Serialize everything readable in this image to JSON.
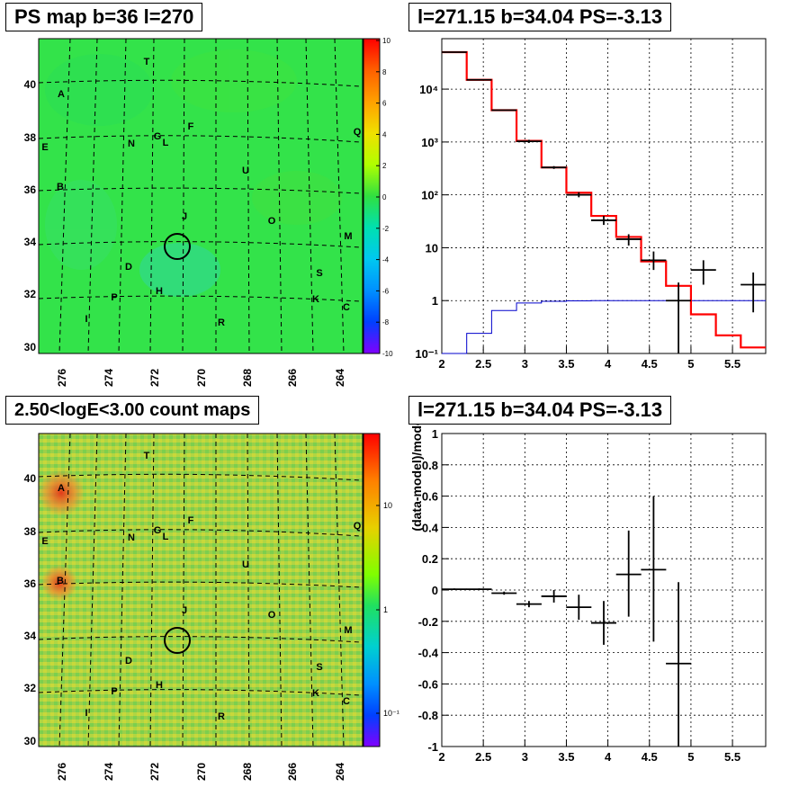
{
  "titles": {
    "ps_map": "PS map b=36 l=270",
    "spectrum": "l=271.15 b=34.04 PS=-3.13",
    "count_map": "2.50<logE<3.00 count maps",
    "residual": "l=271.15 b=34.04 PS=-3.13"
  },
  "maps": {
    "y_ticks": [
      "30",
      "32",
      "34",
      "36",
      "38",
      "40"
    ],
    "x_ticks": [
      "276",
      "274",
      "272",
      "270",
      "268",
      "266",
      "264"
    ],
    "ps_colorbar_ticks": [
      "10",
      "8",
      "6",
      "4",
      "2",
      "0",
      "-2",
      "-4",
      "-6",
      "-8",
      "-10"
    ],
    "count_colorbar_ticks": [
      "10",
      "1",
      "10⁻¹"
    ],
    "sources": [
      "T",
      "A",
      "E",
      "G",
      "F",
      "N",
      "L",
      "Q",
      "B",
      "U",
      "J",
      "O",
      "M",
      "D",
      "S",
      "H",
      "P",
      "K",
      "C",
      "I",
      "R"
    ],
    "colors": {
      "map_green": "#33e34a",
      "hot_red": "#e8401e",
      "circle": "#000000"
    }
  },
  "chart_data": [
    {
      "type": "line",
      "title": "l=271.15 b=34.04 PS=-3.13",
      "xlabel": "",
      "ylabel": "",
      "xlim": [
        2,
        5.9
      ],
      "ylim": [
        0.1,
        90000
      ],
      "ylog": true,
      "grid": true,
      "x_ticks": [
        "2",
        "2.5",
        "3",
        "3.5",
        "4",
        "4.5",
        "5",
        "5.5"
      ],
      "y_ticks": [
        "10⁻¹",
        "1",
        "10",
        "10²",
        "10³",
        "10⁴"
      ],
      "bin_edges": [
        2.0,
        2.3,
        2.6,
        2.9,
        3.2,
        3.5,
        3.8,
        4.1,
        4.4,
        4.7,
        5.0,
        5.3,
        5.6,
        5.9
      ],
      "model_red": [
        50000,
        15000,
        4000,
        1050,
        330,
        110,
        40,
        16,
        5.5,
        1.9,
        0.55,
        0.22,
        0.13
      ],
      "model_blue": [
        0.09,
        0.24,
        0.65,
        0.9,
        0.97,
        0.99,
        1.0,
        1.0,
        1.0,
        1.0,
        1.0,
        1.0,
        1.0
      ],
      "data_points": [
        {
          "x": 2.15,
          "y": 50000
        },
        {
          "x": 2.45,
          "y": 15000
        },
        {
          "x": 2.75,
          "y": 4000
        },
        {
          "x": 3.05,
          "y": 1030,
          "ylo": 960,
          "yhi": 1100
        },
        {
          "x": 3.35,
          "y": 330,
          "ylo": 310,
          "yhi": 350
        },
        {
          "x": 3.65,
          "y": 100,
          "ylo": 90,
          "yhi": 112
        },
        {
          "x": 3.95,
          "y": 33,
          "ylo": 27,
          "yhi": 40
        },
        {
          "x": 4.25,
          "y": 14.5,
          "ylo": 11,
          "yhi": 18
        },
        {
          "x": 4.55,
          "y": 5.8,
          "ylo": 3.8,
          "yhi": 8.5
        },
        {
          "x": 4.85,
          "y": 1.0,
          "ylo": 0.1,
          "yhi": 2.2
        },
        {
          "x": 5.15,
          "y": 3.8,
          "ylo": 2.0,
          "yhi": 5.8
        },
        {
          "x": 5.75,
          "y": 2.0,
          "ylo": 0.6,
          "yhi": 3.4
        }
      ],
      "colors": {
        "model_red": "#ff0000",
        "model_blue": "#0000cc",
        "data": "#000000"
      }
    },
    {
      "type": "scatter",
      "title": "l=271.15 b=34.04 PS=-3.13",
      "xlabel": "",
      "ylabel": "(data-model)/model",
      "xlim": [
        2,
        5.9
      ],
      "ylim": [
        -1,
        1
      ],
      "grid": true,
      "x_ticks": [
        "2",
        "2.5",
        "3",
        "3.5",
        "4",
        "4.5",
        "5",
        "5.5"
      ],
      "y_ticks": [
        "-1",
        "-0.8",
        "-0.6",
        "-0.4",
        "-0.2",
        "0",
        "0.2",
        "0.4",
        "0.6",
        "0.8",
        "1"
      ],
      "points": [
        {
          "x": 2.15,
          "y": 0.005,
          "ylo": 0.0,
          "yhi": 0.01
        },
        {
          "x": 2.45,
          "y": 0.005,
          "ylo": 0.0,
          "yhi": 0.01
        },
        {
          "x": 2.75,
          "y": -0.02,
          "ylo": -0.03,
          "yhi": -0.01
        },
        {
          "x": 3.05,
          "y": -0.09,
          "ylo": -0.11,
          "yhi": -0.07
        },
        {
          "x": 3.35,
          "y": -0.04,
          "ylo": -0.08,
          "yhi": 0.0
        },
        {
          "x": 3.65,
          "y": -0.11,
          "ylo": -0.19,
          "yhi": -0.03
        },
        {
          "x": 3.95,
          "y": -0.21,
          "ylo": -0.35,
          "yhi": -0.07
        },
        {
          "x": 4.25,
          "y": 0.1,
          "ylo": -0.17,
          "yhi": 0.38
        },
        {
          "x": 4.55,
          "y": 0.13,
          "ylo": -0.33,
          "yhi": 0.6
        },
        {
          "x": 4.85,
          "y": -0.47,
          "ylo": -1.0,
          "yhi": 0.05
        }
      ],
      "colors": {
        "data": "#000000"
      }
    }
  ]
}
